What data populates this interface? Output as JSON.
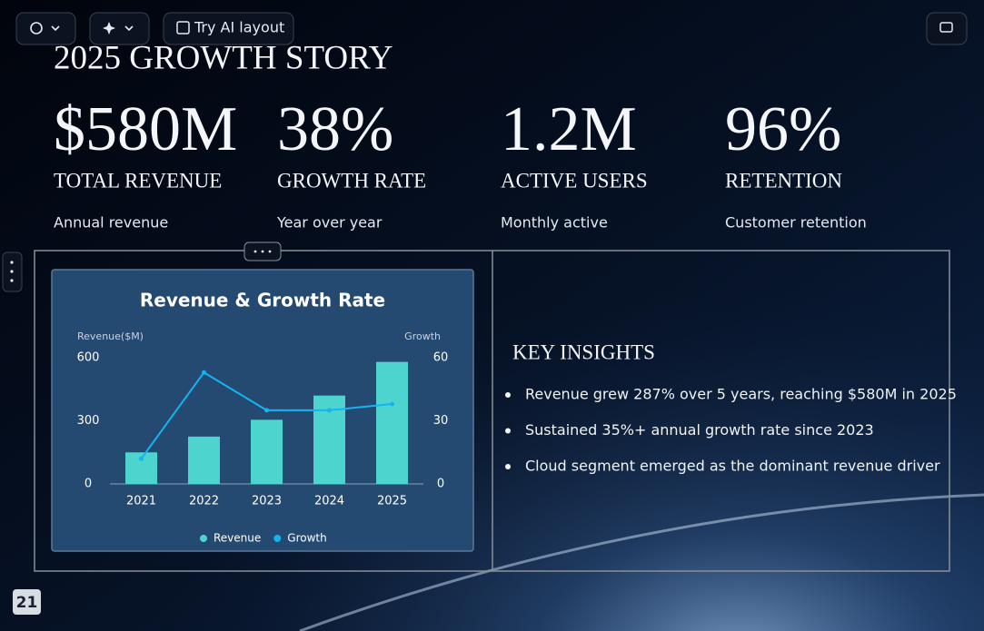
{
  "toolbar": {
    "ai_layout": "Try AI layout"
  },
  "slide": {
    "title": "2025 GROWTH STORY",
    "stats": [
      {
        "value": "$580M",
        "label": "TOTAL REVENUE",
        "caption": "Annual revenue"
      },
      {
        "value": "38%",
        "label": "GROWTH RATE",
        "caption": "Year over year"
      },
      {
        "value": "1.2M",
        "label": "ACTIVE USERS",
        "caption": "Monthly active"
      },
      {
        "value": "96%",
        "label": "RETENTION",
        "caption": "Customer retention"
      }
    ],
    "insights": {
      "heading": "KEY INSIGHTS",
      "items": [
        "Revenue grew 287% over 5 years, reaching $580M in 2025",
        "Sustained 35%+ annual growth rate since 2023",
        "Cloud segment emerged as the dominant revenue driver"
      ]
    },
    "page_number": "21"
  },
  "chart_data": {
    "type": "bar",
    "title": "Revenue & Growth Rate",
    "y_label": "Revenue($M)",
    "y2_label": "Growth",
    "categories": [
      "2021",
      "2022",
      "2023",
      "2024",
      "2025"
    ],
    "series": [
      {
        "name": "Revenue",
        "type": "bar",
        "color": "#4dd4cf",
        "values": [
          150,
          225,
          305,
          420,
          580
        ]
      },
      {
        "name": "Growth",
        "type": "line",
        "axis": "y2",
        "color": "#14b4f2",
        "values": [
          12,
          53,
          35,
          35,
          38
        ]
      }
    ],
    "ylim": [
      0,
      600
    ],
    "yticks": [
      0,
      300,
      600
    ],
    "y2lim": [
      0,
      60
    ],
    "y2ticks": [
      0,
      30,
      60
    ]
  }
}
